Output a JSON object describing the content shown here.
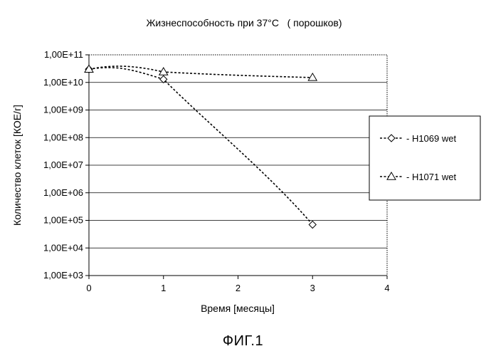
{
  "chart_data": {
    "type": "line",
    "title": "Жизнеспособность при 37°C   ( порошков)",
    "xlabel": "Время [месяцы]",
    "ylabel": "Количество клеток [КОЕ/г]",
    "xlim": [
      0,
      4
    ],
    "x_ticks": [
      "0",
      "1",
      "2",
      "3",
      "4"
    ],
    "ylim": [
      1000,
      100000000000
    ],
    "yscale": "log",
    "y_ticks": [
      "1,00E+03",
      "1,00E+04",
      "1,00E+05",
      "1,00E+06",
      "1,00E+07",
      "1,00E+08",
      "1,00E+09",
      "1,00E+10",
      "1,00E+11"
    ],
    "grid": true,
    "legend_position": "right",
    "series": [
      {
        "name": "H1069 wet",
        "marker": "diamond",
        "color": "#000000",
        "x": [
          0,
          1,
          3
        ],
        "y": [
          30000000000,
          13000000000,
          70000
        ]
      },
      {
        "name": "H1071 wet",
        "marker": "triangle",
        "color": "#000000",
        "x": [
          0,
          1,
          3
        ],
        "y": [
          30000000000,
          24000000000,
          15000000000
        ]
      }
    ],
    "legend_entries": [
      "- - ◇ - H1069 wet",
      "- - △ - H1071 wet"
    ]
  },
  "figure_caption": "ФИГ.1"
}
